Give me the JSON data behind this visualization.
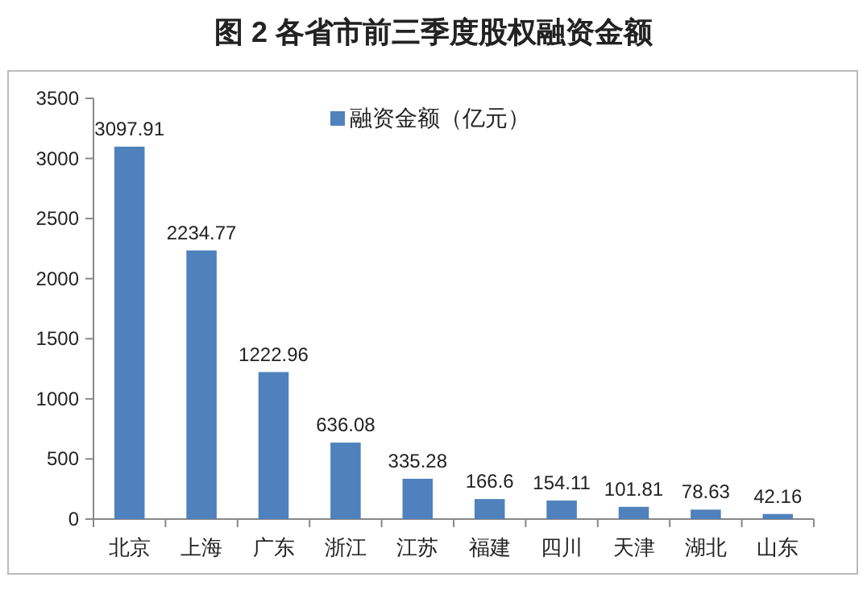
{
  "chart_data": {
    "type": "bar",
    "title": "图 2  各省市前三季度股权融资金额",
    "categories": [
      "北京",
      "上海",
      "广东",
      "浙江",
      "江苏",
      "福建",
      "四川",
      "天津",
      "湖北",
      "山东"
    ],
    "series": [
      {
        "name": "融资金额（亿元）",
        "color": "#4f81bd",
        "values": [
          3097.91,
          2234.77,
          1222.96,
          636.08,
          335.28,
          166.6,
          154.11,
          101.81,
          78.63,
          42.16
        ]
      }
    ],
    "data_labels": true,
    "ylim": [
      0,
      3500
    ],
    "yticks": [
      0,
      500,
      1000,
      1500,
      2000,
      2500,
      3000,
      3500
    ],
    "grid": false,
    "legend": "top"
  }
}
